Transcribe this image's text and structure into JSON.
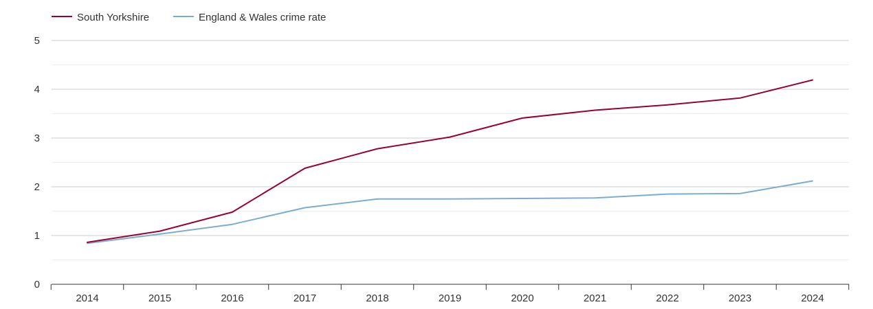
{
  "chart_data": {
    "type": "line",
    "categories": [
      "2014",
      "2015",
      "2016",
      "2017",
      "2018",
      "2019",
      "2020",
      "2021",
      "2022",
      "2023",
      "2024"
    ],
    "series": [
      {
        "name": "South Yorkshire",
        "color": "#990033",
        "values": [
          0.86,
          1.09,
          1.48,
          2.38,
          2.78,
          3.02,
          3.41,
          3.57,
          3.68,
          3.82,
          4.19
        ]
      },
      {
        "name": "England & Wales crime rate",
        "color": "#7aadd0",
        "values": [
          0.84,
          1.03,
          1.23,
          1.57,
          1.75,
          1.75,
          1.76,
          1.77,
          1.85,
          1.86,
          2.12
        ]
      }
    ],
    "y_ticks": [
      "0",
      "1",
      "2",
      "3",
      "4",
      "5"
    ],
    "ylim": [
      0,
      5
    ],
    "grid": true,
    "legend_position": "top-left"
  }
}
